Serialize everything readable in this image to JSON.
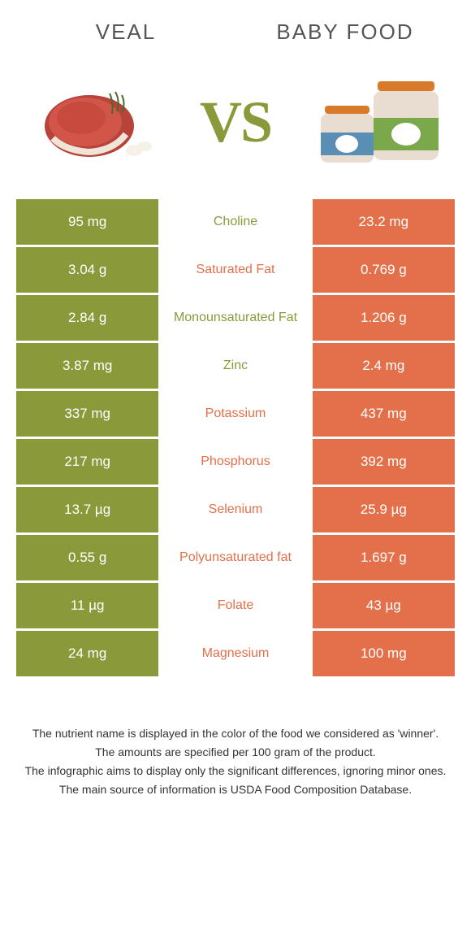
{
  "colors": {
    "left": "#8a9a3a",
    "right": "#e3704a",
    "vs": "#8a9a3a",
    "header_text": "#555555",
    "background": "#ffffff",
    "footer_text": "#333333"
  },
  "header": {
    "left_title": "Veal",
    "right_title": "Baby food",
    "vs_text": "VS"
  },
  "rows": [
    {
      "left": "95 mg",
      "mid": "Choline",
      "right": "23.2 mg",
      "winner": "left"
    },
    {
      "left": "3.04 g",
      "mid": "Saturated Fat",
      "right": "0.769 g",
      "winner": "right"
    },
    {
      "left": "2.84 g",
      "mid": "Monounsaturated Fat",
      "right": "1.206 g",
      "winner": "left"
    },
    {
      "left": "3.87 mg",
      "mid": "Zinc",
      "right": "2.4 mg",
      "winner": "left"
    },
    {
      "left": "337 mg",
      "mid": "Potassium",
      "right": "437 mg",
      "winner": "right"
    },
    {
      "left": "217 mg",
      "mid": "Phosphorus",
      "right": "392 mg",
      "winner": "right"
    },
    {
      "left": "13.7 µg",
      "mid": "Selenium",
      "right": "25.9 µg",
      "winner": "right"
    },
    {
      "left": "0.55 g",
      "mid": "Polyunsaturated fat",
      "right": "1.697 g",
      "winner": "right"
    },
    {
      "left": "11 µg",
      "mid": "Folate",
      "right": "43 µg",
      "winner": "right"
    },
    {
      "left": "24 mg",
      "mid": "Magnesium",
      "right": "100 mg",
      "winner": "right"
    }
  ],
  "footer": {
    "line1": "The nutrient name is displayed in the color of the food we considered as 'winner'.",
    "line2": "The amounts are specified per 100 gram of the product.",
    "line3": "The infographic aims to display only the significant differences, ignoring minor ones.",
    "line4": "The main source of information is USDA Food Composition Database."
  }
}
